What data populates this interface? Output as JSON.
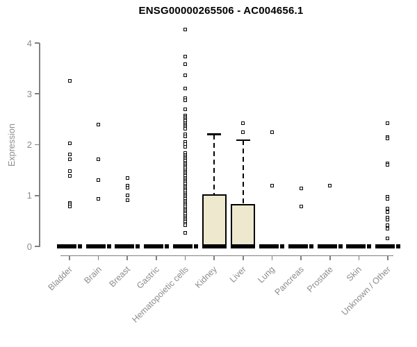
{
  "chart_data": {
    "type": "boxplot",
    "title": "ENSG00000265506 - AC004656.1",
    "ylabel": "Expression",
    "xlabel": "",
    "ylim": [
      0,
      4.3
    ],
    "y_ticks": [
      0,
      1,
      2,
      3,
      4
    ],
    "grid": false,
    "legend": "none",
    "box_fill_color": "#EDE8CE",
    "axis_color": "#808080",
    "axis_text_color": "#8c8c8c",
    "marker": "open-square",
    "categories": [
      "Bladder",
      "Brain",
      "Breast",
      "Gastric",
      "Hematopoietic cells",
      "Kidney",
      "Liver",
      "Lung",
      "Pancreas",
      "Prostate",
      "Skin",
      "Unknown / Other"
    ],
    "series": [
      {
        "label": "Bladder",
        "median": 0,
        "q1": 0,
        "q3": 0,
        "whisker_low": 0,
        "whisker_high": 0,
        "outliers": [
          3.25,
          2.03,
          1.81,
          1.72,
          1.48,
          1.38,
          0.86,
          0.82,
          0.79
        ]
      },
      {
        "label": "Brain",
        "median": 0,
        "q1": 0,
        "q3": 0,
        "whisker_low": 0,
        "whisker_high": 0,
        "outliers": [
          2.39,
          1.72,
          1.3,
          0.93
        ]
      },
      {
        "label": "Breast",
        "median": 0,
        "q1": 0,
        "q3": 0,
        "whisker_low": 0,
        "whisker_high": 0,
        "outliers": [
          1.34,
          1.2,
          1.16,
          1.01,
          0.91
        ]
      },
      {
        "label": "Gastric",
        "median": 0,
        "q1": 0,
        "q3": 0,
        "whisker_low": 0,
        "whisker_high": 0,
        "outliers": []
      },
      {
        "label": "Hematopoietic cells",
        "median": 0,
        "q1": 0,
        "q3": 0,
        "whisker_low": 0,
        "whisker_high": 0,
        "outliers": [
          4.27,
          3.73,
          3.59,
          3.36,
          3.11,
          2.91,
          2.88,
          2.69,
          2.58,
          2.55,
          2.52,
          2.49,
          2.46,
          2.43,
          2.4,
          2.37,
          2.34,
          2.31,
          2.21,
          2.16,
          2.06,
          2.01,
          1.96,
          1.83,
          1.8,
          1.77,
          1.74,
          1.71,
          1.68,
          1.65,
          1.62,
          1.59,
          1.56,
          1.53,
          1.5,
          1.47,
          1.44,
          1.41,
          1.38,
          1.35,
          1.32,
          1.29,
          1.26,
          1.23,
          1.2,
          1.17,
          1.14,
          1.11,
          1.08,
          1.05,
          1.02,
          0.99,
          0.96,
          0.93,
          0.9,
          0.87,
          0.84,
          0.81,
          0.78,
          0.75,
          0.72,
          0.69,
          0.66,
          0.63,
          0.6,
          0.57,
          0.54,
          0.51,
          0.48,
          0.45,
          0.42,
          0.27
        ]
      },
      {
        "label": "Kidney",
        "median": 0,
        "q1": 0,
        "q3": 1.02,
        "whisker_low": 0,
        "whisker_high": 2.2,
        "outliers": []
      },
      {
        "label": "Liver",
        "median": 0,
        "q1": 0,
        "q3": 0.83,
        "whisker_low": 0,
        "whisker_high": 2.09,
        "outliers": [
          2.42,
          2.24
        ]
      },
      {
        "label": "Lung",
        "median": 0,
        "q1": 0,
        "q3": 0,
        "whisker_low": 0,
        "whisker_high": 0,
        "outliers": [
          2.24,
          1.19
        ]
      },
      {
        "label": "Pancreas",
        "median": 0,
        "q1": 0,
        "q3": 0,
        "whisker_low": 0,
        "whisker_high": 0,
        "outliers": [
          1.14,
          0.78
        ]
      },
      {
        "label": "Prostate",
        "median": 0,
        "q1": 0,
        "q3": 0,
        "whisker_low": 0,
        "whisker_high": 0,
        "outliers": [
          1.19
        ]
      },
      {
        "label": "Skin",
        "median": 0,
        "q1": 0,
        "q3": 0,
        "whisker_low": 0,
        "whisker_high": 0,
        "outliers": []
      },
      {
        "label": "Unknown / Other",
        "median": 0,
        "q1": 0,
        "q3": 0,
        "whisker_low": 0,
        "whisker_high": 0,
        "outliers": [
          2.43,
          2.15,
          2.12,
          1.63,
          1.6,
          0.98,
          0.93,
          0.74,
          0.68,
          0.57,
          0.52,
          0.41,
          0.35,
          0.16
        ]
      }
    ]
  }
}
